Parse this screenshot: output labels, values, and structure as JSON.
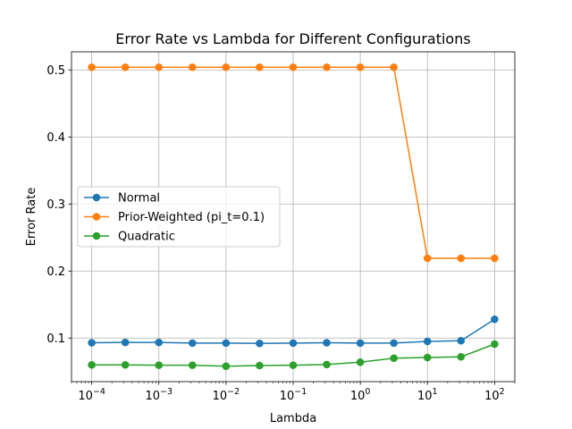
{
  "chart_data": {
    "type": "line",
    "title": "Error Rate vs Lambda for Different Configurations",
    "xlabel": "Lambda",
    "ylabel": "Error Rate",
    "xscale": "log",
    "x": [
      0.0001,
      0.000316,
      0.001,
      0.00316,
      0.01,
      0.0316,
      0.1,
      0.316,
      1,
      3.16,
      10,
      31.6,
      100
    ],
    "xlim": [
      5e-05,
      200
    ],
    "ylim": [
      0.035,
      0.527
    ],
    "xticks": [
      {
        "value": 0.0001,
        "base": "10",
        "exp": "−4"
      },
      {
        "value": 0.001,
        "base": "10",
        "exp": "−3"
      },
      {
        "value": 0.01,
        "base": "10",
        "exp": "−2"
      },
      {
        "value": 0.1,
        "base": "10",
        "exp": "−1"
      },
      {
        "value": 1,
        "base": "10",
        "exp": "0"
      },
      {
        "value": 10,
        "base": "10",
        "exp": "1"
      },
      {
        "value": 100,
        "base": "10",
        "exp": "2"
      }
    ],
    "yticks": [
      {
        "value": 0.1,
        "label": "0.1"
      },
      {
        "value": 0.2,
        "label": "0.2"
      },
      {
        "value": 0.3,
        "label": "0.3"
      },
      {
        "value": 0.4,
        "label": "0.4"
      },
      {
        "value": 0.5,
        "label": "0.5"
      }
    ],
    "grid": true,
    "legend_position": "center-left",
    "series": [
      {
        "name": "Normal",
        "color": "#1f77b4",
        "values": [
          0.093,
          0.0935,
          0.0935,
          0.0925,
          0.0925,
          0.092,
          0.0925,
          0.093,
          0.0925,
          0.0925,
          0.095,
          0.096,
          0.128
        ]
      },
      {
        "name": "Prior-Weighted (pi_t=0.1)",
        "color": "#ff7f0e",
        "values": [
          0.504,
          0.504,
          0.504,
          0.504,
          0.504,
          0.504,
          0.504,
          0.504,
          0.504,
          0.504,
          0.219,
          0.219,
          0.219
        ]
      },
      {
        "name": "Quadratic",
        "color": "#2ca02c",
        "values": [
          0.06,
          0.06,
          0.0595,
          0.0595,
          0.058,
          0.059,
          0.0595,
          0.0605,
          0.064,
          0.07,
          0.071,
          0.072,
          0.091
        ]
      }
    ]
  }
}
